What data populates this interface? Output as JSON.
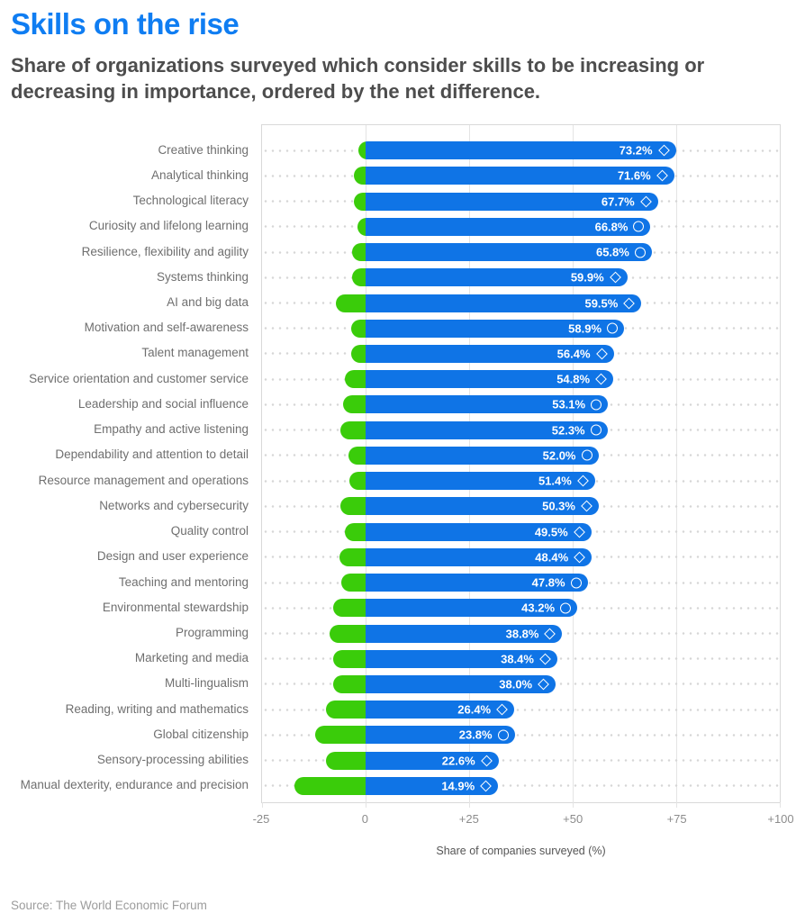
{
  "header": {
    "title": "Skills on the rise",
    "subtitle": "Share of organizations surveyed which consider skills to be increasing or decreasing in importance, ordered by the net difference."
  },
  "source": {
    "text": "Source: The World Economic Forum"
  },
  "colors": {
    "title_blue": "#0f7df2",
    "bar_blue": "#0f74e6",
    "bar_green": "#3acc0a",
    "subtitle_gray": "#4d4d4d",
    "category_gray": "#6f6f6f",
    "axis_gray": "#8c8c8c",
    "axis_title_gray": "#555555",
    "grid": "#e4e4e4",
    "plot_border": "#d9d9d9",
    "leader_dot": "#d6d6d6",
    "source_gray": "#9c9c9c",
    "value_label": "#ffffff"
  },
  "chart_data": {
    "type": "bar",
    "orientation": "horizontal",
    "title": "Skills on the rise",
    "xlabel": "Share of companies surveyed (%)",
    "xlim": [
      -25,
      100
    ],
    "grid": true,
    "x_ticks": [
      {
        "label": "-25",
        "pct": -25
      },
      {
        "label": "0",
        "pct": 0
      },
      {
        "label": "+25",
        "pct": 25
      },
      {
        "label": "+50",
        "pct": 50
      },
      {
        "label": "+75",
        "pct": 75
      },
      {
        "label": "+100",
        "pct": 100
      }
    ],
    "series_note": "bar spans from -decrease (green) to +increase (blue); label shows net difference; marker shape at bar end",
    "rows": [
      {
        "label": "Creative thinking",
        "value_label": "73.2%",
        "net": 73.2,
        "increase": 74.9,
        "decrease": 1.7,
        "marker": "diamond"
      },
      {
        "label": "Analytical thinking",
        "value_label": "71.6%",
        "net": 71.6,
        "increase": 74.5,
        "decrease": 2.9,
        "marker": "diamond"
      },
      {
        "label": "Technological literacy",
        "value_label": "67.7%",
        "net": 67.7,
        "increase": 70.6,
        "decrease": 2.9,
        "marker": "diamond"
      },
      {
        "label": "Curiosity and lifelong learning",
        "value_label": "66.8%",
        "net": 66.8,
        "increase": 68.8,
        "decrease": 2.0,
        "marker": "circle"
      },
      {
        "label": "Resilience, flexibility and agility",
        "value_label": "65.8%",
        "net": 65.8,
        "increase": 69.1,
        "decrease": 3.3,
        "marker": "circle"
      },
      {
        "label": "Systems thinking",
        "value_label": "59.9%",
        "net": 59.9,
        "increase": 63.2,
        "decrease": 3.3,
        "marker": "diamond"
      },
      {
        "label": "AI and big data",
        "value_label": "59.5%",
        "net": 59.5,
        "increase": 66.6,
        "decrease": 7.1,
        "marker": "diamond"
      },
      {
        "label": "Motivation and self-awareness",
        "value_label": "58.9%",
        "net": 58.9,
        "increase": 62.4,
        "decrease": 3.5,
        "marker": "circle"
      },
      {
        "label": "Talent management",
        "value_label": "56.4%",
        "net": 56.4,
        "increase": 59.9,
        "decrease": 3.5,
        "marker": "diamond"
      },
      {
        "label": "Service orientation and customer service",
        "value_label": "54.8%",
        "net": 54.8,
        "increase": 59.8,
        "decrease": 5.0,
        "marker": "diamond"
      },
      {
        "label": "Leadership and social influence",
        "value_label": "53.1%",
        "net": 53.1,
        "increase": 58.5,
        "decrease": 5.4,
        "marker": "circle"
      },
      {
        "label": "Empathy and active listening",
        "value_label": "52.3%",
        "net": 52.3,
        "increase": 58.4,
        "decrease": 6.1,
        "marker": "circle"
      },
      {
        "label": "Dependability and attention to detail",
        "value_label": "52.0%",
        "net": 52.0,
        "increase": 56.2,
        "decrease": 4.2,
        "marker": "circle"
      },
      {
        "label": "Resource management and operations",
        "value_label": "51.4%",
        "net": 51.4,
        "increase": 55.4,
        "decrease": 4.0,
        "marker": "diamond"
      },
      {
        "label": "Networks and cybersecurity",
        "value_label": "50.3%",
        "net": 50.3,
        "increase": 56.3,
        "decrease": 6.0,
        "marker": "diamond"
      },
      {
        "label": "Quality control",
        "value_label": "49.5%",
        "net": 49.5,
        "increase": 54.5,
        "decrease": 5.0,
        "marker": "diamond"
      },
      {
        "label": "Design and user experience",
        "value_label": "48.4%",
        "net": 48.4,
        "increase": 54.6,
        "decrease": 6.2,
        "marker": "diamond"
      },
      {
        "label": "Teaching and mentoring",
        "value_label": "47.8%",
        "net": 47.8,
        "increase": 53.6,
        "decrease": 5.8,
        "marker": "circle"
      },
      {
        "label": "Environmental stewardship",
        "value_label": "43.2%",
        "net": 43.2,
        "increase": 51.1,
        "decrease": 7.9,
        "marker": "circle"
      },
      {
        "label": "Programming",
        "value_label": "38.8%",
        "net": 38.8,
        "increase": 47.5,
        "decrease": 8.7,
        "marker": "diamond"
      },
      {
        "label": "Marketing and media",
        "value_label": "38.4%",
        "net": 38.4,
        "increase": 46.3,
        "decrease": 7.9,
        "marker": "diamond"
      },
      {
        "label": "Multi-lingualism",
        "value_label": "38.0%",
        "net": 38.0,
        "increase": 45.9,
        "decrease": 7.9,
        "marker": "diamond"
      },
      {
        "label": "Reading, writing and mathematics",
        "value_label": "26.4%",
        "net": 26.4,
        "increase": 35.9,
        "decrease": 9.5,
        "marker": "diamond"
      },
      {
        "label": "Global citizenship",
        "value_label": "23.8%",
        "net": 23.8,
        "increase": 36.0,
        "decrease": 12.2,
        "marker": "circle"
      },
      {
        "label": "Sensory-processing abilities",
        "value_label": "22.6%",
        "net": 22.6,
        "increase": 32.1,
        "decrease": 9.5,
        "marker": "diamond"
      },
      {
        "label": "Manual dexterity, endurance and precision",
        "value_label": "14.9%",
        "net": 14.9,
        "increase": 32.0,
        "decrease": 17.1,
        "marker": "diamond"
      }
    ]
  }
}
